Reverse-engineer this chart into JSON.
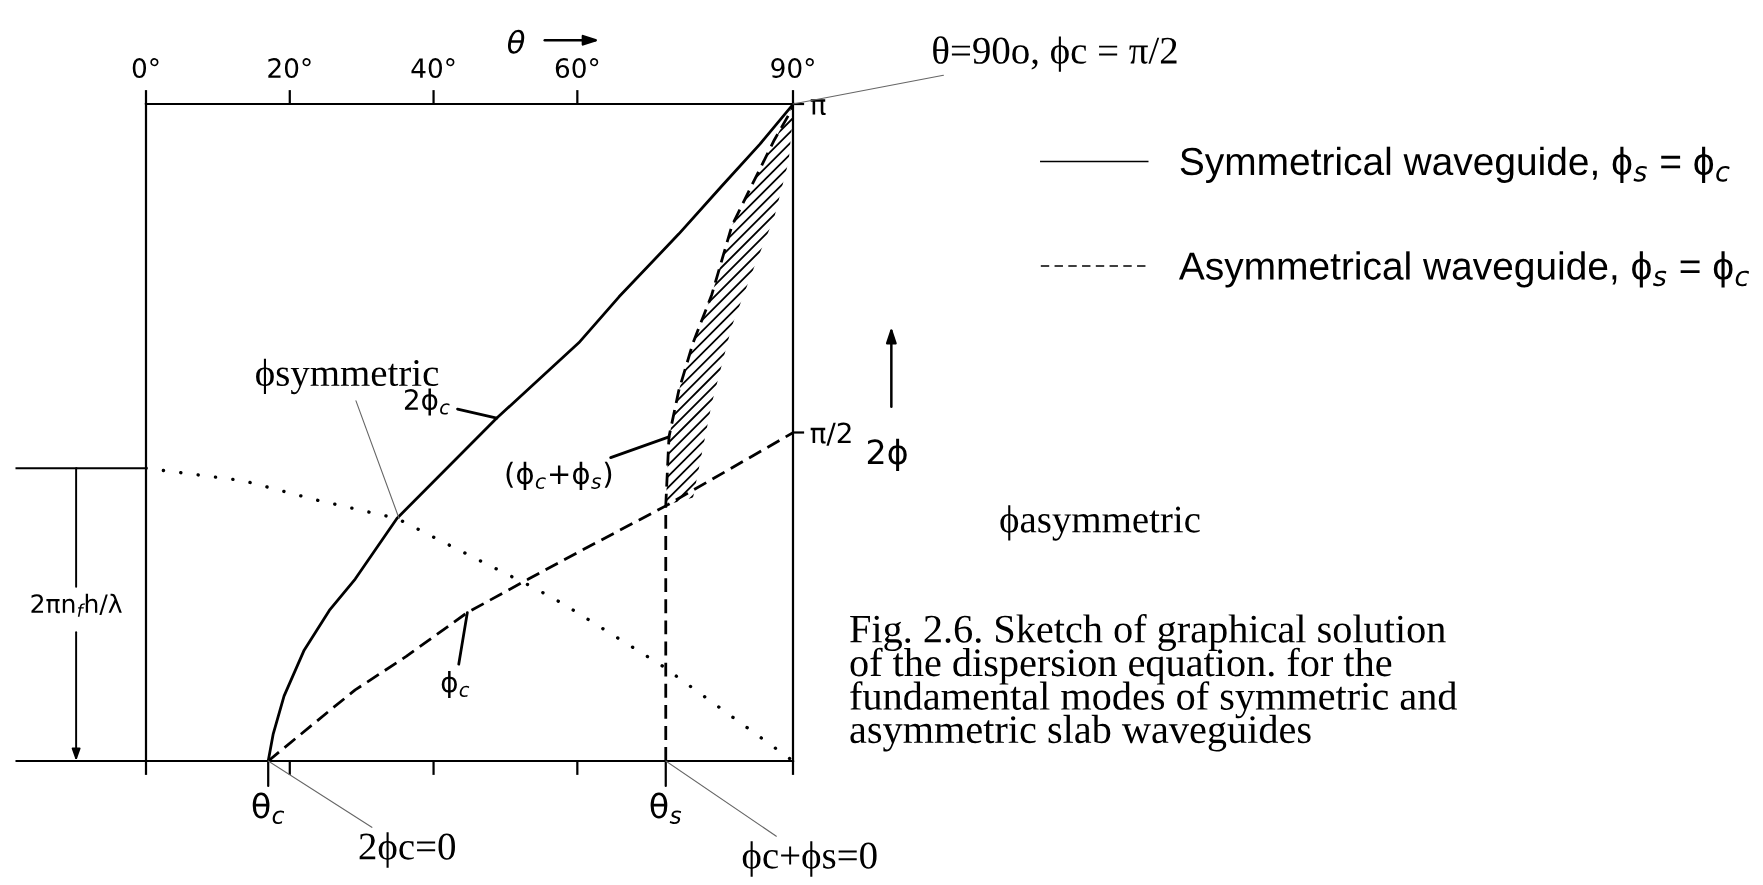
{
  "chart_data": {
    "type": "line",
    "xlabel": "θ",
    "ylabel": "2ϕ",
    "xlim": [
      0,
      90
    ],
    "xticks": [
      {
        "value": 0,
        "label": "0°"
      },
      {
        "value": 20,
        "label": "20°"
      },
      {
        "value": 40,
        "label": "40°"
      },
      {
        "value": 60,
        "label": "60°"
      },
      {
        "value": 90,
        "label": "90°"
      }
    ],
    "ylim": [
      0,
      3.142
    ],
    "yticks": [
      {
        "value": 1.571,
        "label": "π/2"
      },
      {
        "value": 3.142,
        "label": "π"
      }
    ],
    "legend": "top right",
    "series": [
      {
        "name": "Symmetrical waveguide, ϕ$_{s}$ = ϕ$_{c}$",
        "color": "#000000",
        "line_style": "solid",
        "x": [
          17,
          17.7,
          19.2,
          22,
          25.5,
          29.1,
          34.9,
          48.8,
          60.2,
          65.8,
          74.1,
          80.1,
          85.4,
          90
        ],
        "values": [
          0,
          0.13,
          0.31,
          0.53,
          0.72,
          0.87,
          1.16,
          1.64,
          2.0,
          2.22,
          2.52,
          2.75,
          2.95,
          3.14
        ]
      },
      {
        "name": "Asymmetrical waveguide, ϕ$_{s}$ = ϕ$_{c}$",
        "color": "#000000",
        "line_style": "dashed",
        "x": [
          17,
          25.5,
          29.1,
          36.2,
          44.7,
          53.2,
          60.2,
          72.3,
          90
        ],
        "values": [
          0,
          0.24,
          0.34,
          0.5,
          0.71,
          0.87,
          1.0,
          1.22,
          1.57
        ]
      },
      {
        "color": "#000000",
        "line_style": "dashed",
        "x": [
          72.3,
          72.3,
          72.75,
          74.1,
          76.1,
          78.7,
          81.5,
          84.8,
          87.4,
          89.4,
          90
        ],
        "values": [
          0,
          1.22,
          1.55,
          1.77,
          2.0,
          2.23,
          2.56,
          2.79,
          2.97,
          3.09,
          3.14
        ],
        "lower": [
          null,
          1.22,
          1.23,
          1.24,
          1.26,
          1.71,
          2.08,
          2.38,
          2.6,
          2.87,
          3.09
        ],
        "upper": [
          null,
          1.22,
          1.55,
          1.77,
          2.0,
          2.23,
          2.56,
          2.79,
          2.97,
          3.09,
          3.14
        ]
      },
      {
        "color": "#000000",
        "line_style": "dotted",
        "x": [
          0,
          13.6,
          23.5,
          34.9,
          46.9,
          53.9,
          58.1,
          71.6,
          90
        ],
        "values": [
          1.4,
          1.34,
          1.25,
          1.16,
          0.95,
          0.83,
          0.75,
          0.46,
          0
        ]
      }
    ],
    "annotations": [
      {
        "text": "θ=90o, ϕc = π/2",
        "x": 90,
        "y": 3.142
      },
      {
        "text": "ϕsymmetric",
        "x": 35.2,
        "y": 1.16
      },
      {
        "text": "2ϕ$_{c}$",
        "x": 48.8,
        "y": 1.64
      },
      {
        "text": "(ϕ$_{c}$+ϕ$_{s}$)",
        "x": 72.75,
        "y": 1.55
      },
      {
        "text": "ϕ$_{c}$",
        "x": 44.7,
        "y": 0.71
      },
      {
        "text": "2πn$_{f}$h/λ",
        "x": 0,
        "y": 1.4
      },
      {
        "text": "θ$_{c}$",
        "x": 17,
        "y": 0
      },
      {
        "text": "θ$_{s}$",
        "x": 72.3,
        "y": 0
      },
      {
        "text": "2ϕc=0",
        "x": 17,
        "y": 0
      },
      {
        "text": "ϕc+ϕs=0",
        "x": 72.3,
        "y": 0
      },
      "ϕasymmetric",
      "Fig. 2.6. Sketch of graphical solution\nof the dispersion equation. for the\nfundamental modes of symmetric and\nasymmetric slab waveguides"
    ]
  }
}
